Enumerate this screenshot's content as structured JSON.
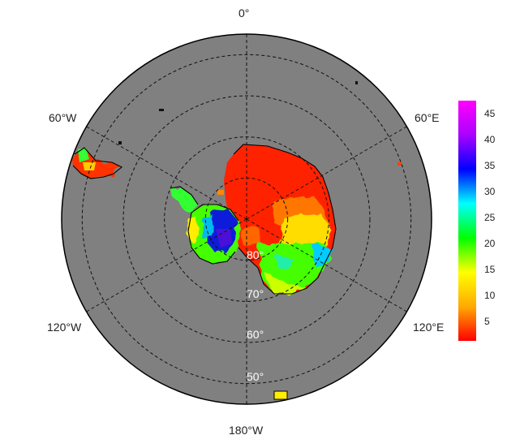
{
  "map": {
    "projection": "south-polar-stereographic",
    "ocean_color": "#808080",
    "graticule_style": "dashed",
    "longitude_labels": {
      "top": "0°",
      "upper_left": "60°W",
      "upper_right": "60°E",
      "lower_left": "120°W",
      "lower_right": "120°E",
      "bottom": "180°W"
    },
    "latitude_labels": [
      "80°",
      "70°",
      "60°",
      "50°"
    ],
    "latitude_values": [
      -80,
      -70,
      -60,
      -50
    ],
    "outer_boundary_latitude": -45
  },
  "colorbar": {
    "ticks": [
      "45",
      "40",
      "35",
      "30",
      "25",
      "20",
      "15",
      "10",
      "5"
    ],
    "tick_values": [
      45,
      40,
      35,
      30,
      25,
      20,
      15,
      10,
      5
    ],
    "range": [
      1,
      47
    ],
    "colors": [
      "#ff0000",
      "#ffaa00",
      "#ffff00",
      "#00ff00",
      "#00ffff",
      "#0000ff",
      "#aa00ff",
      "#ff00ff"
    ]
  }
}
